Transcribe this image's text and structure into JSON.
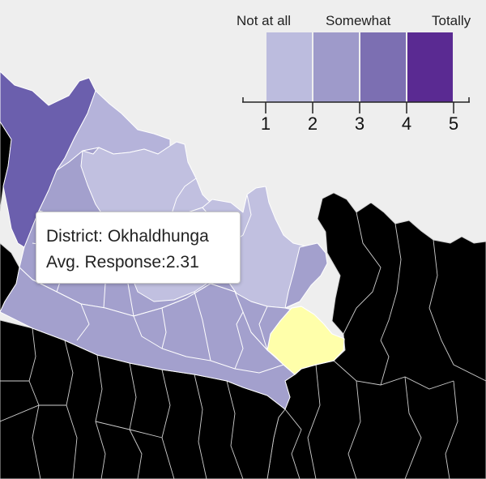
{
  "legend": {
    "labels": [
      "Not at all",
      "Somewhat",
      "Totally"
    ],
    "ticks": [
      "1",
      "2",
      "3",
      "4",
      "5"
    ],
    "colors": [
      "#bcbcde",
      "#9e9aca",
      "#7c6fb2",
      "#5a2a92"
    ]
  },
  "tooltip": {
    "district_label": "District: ",
    "district_value": "Okhaldhunga",
    "response_label": "Avg. Response:",
    "response_value": "2.31"
  },
  "map": {
    "colors": {
      "background": "#eeeeee",
      "lightest": "#c1c0e0",
      "light": "#b5b3da",
      "mid": "#a3a0cd",
      "dark": "#6b5fad",
      "no_data": "#000000",
      "highlight": "#ffffaa",
      "border": "#ffffff"
    }
  }
}
